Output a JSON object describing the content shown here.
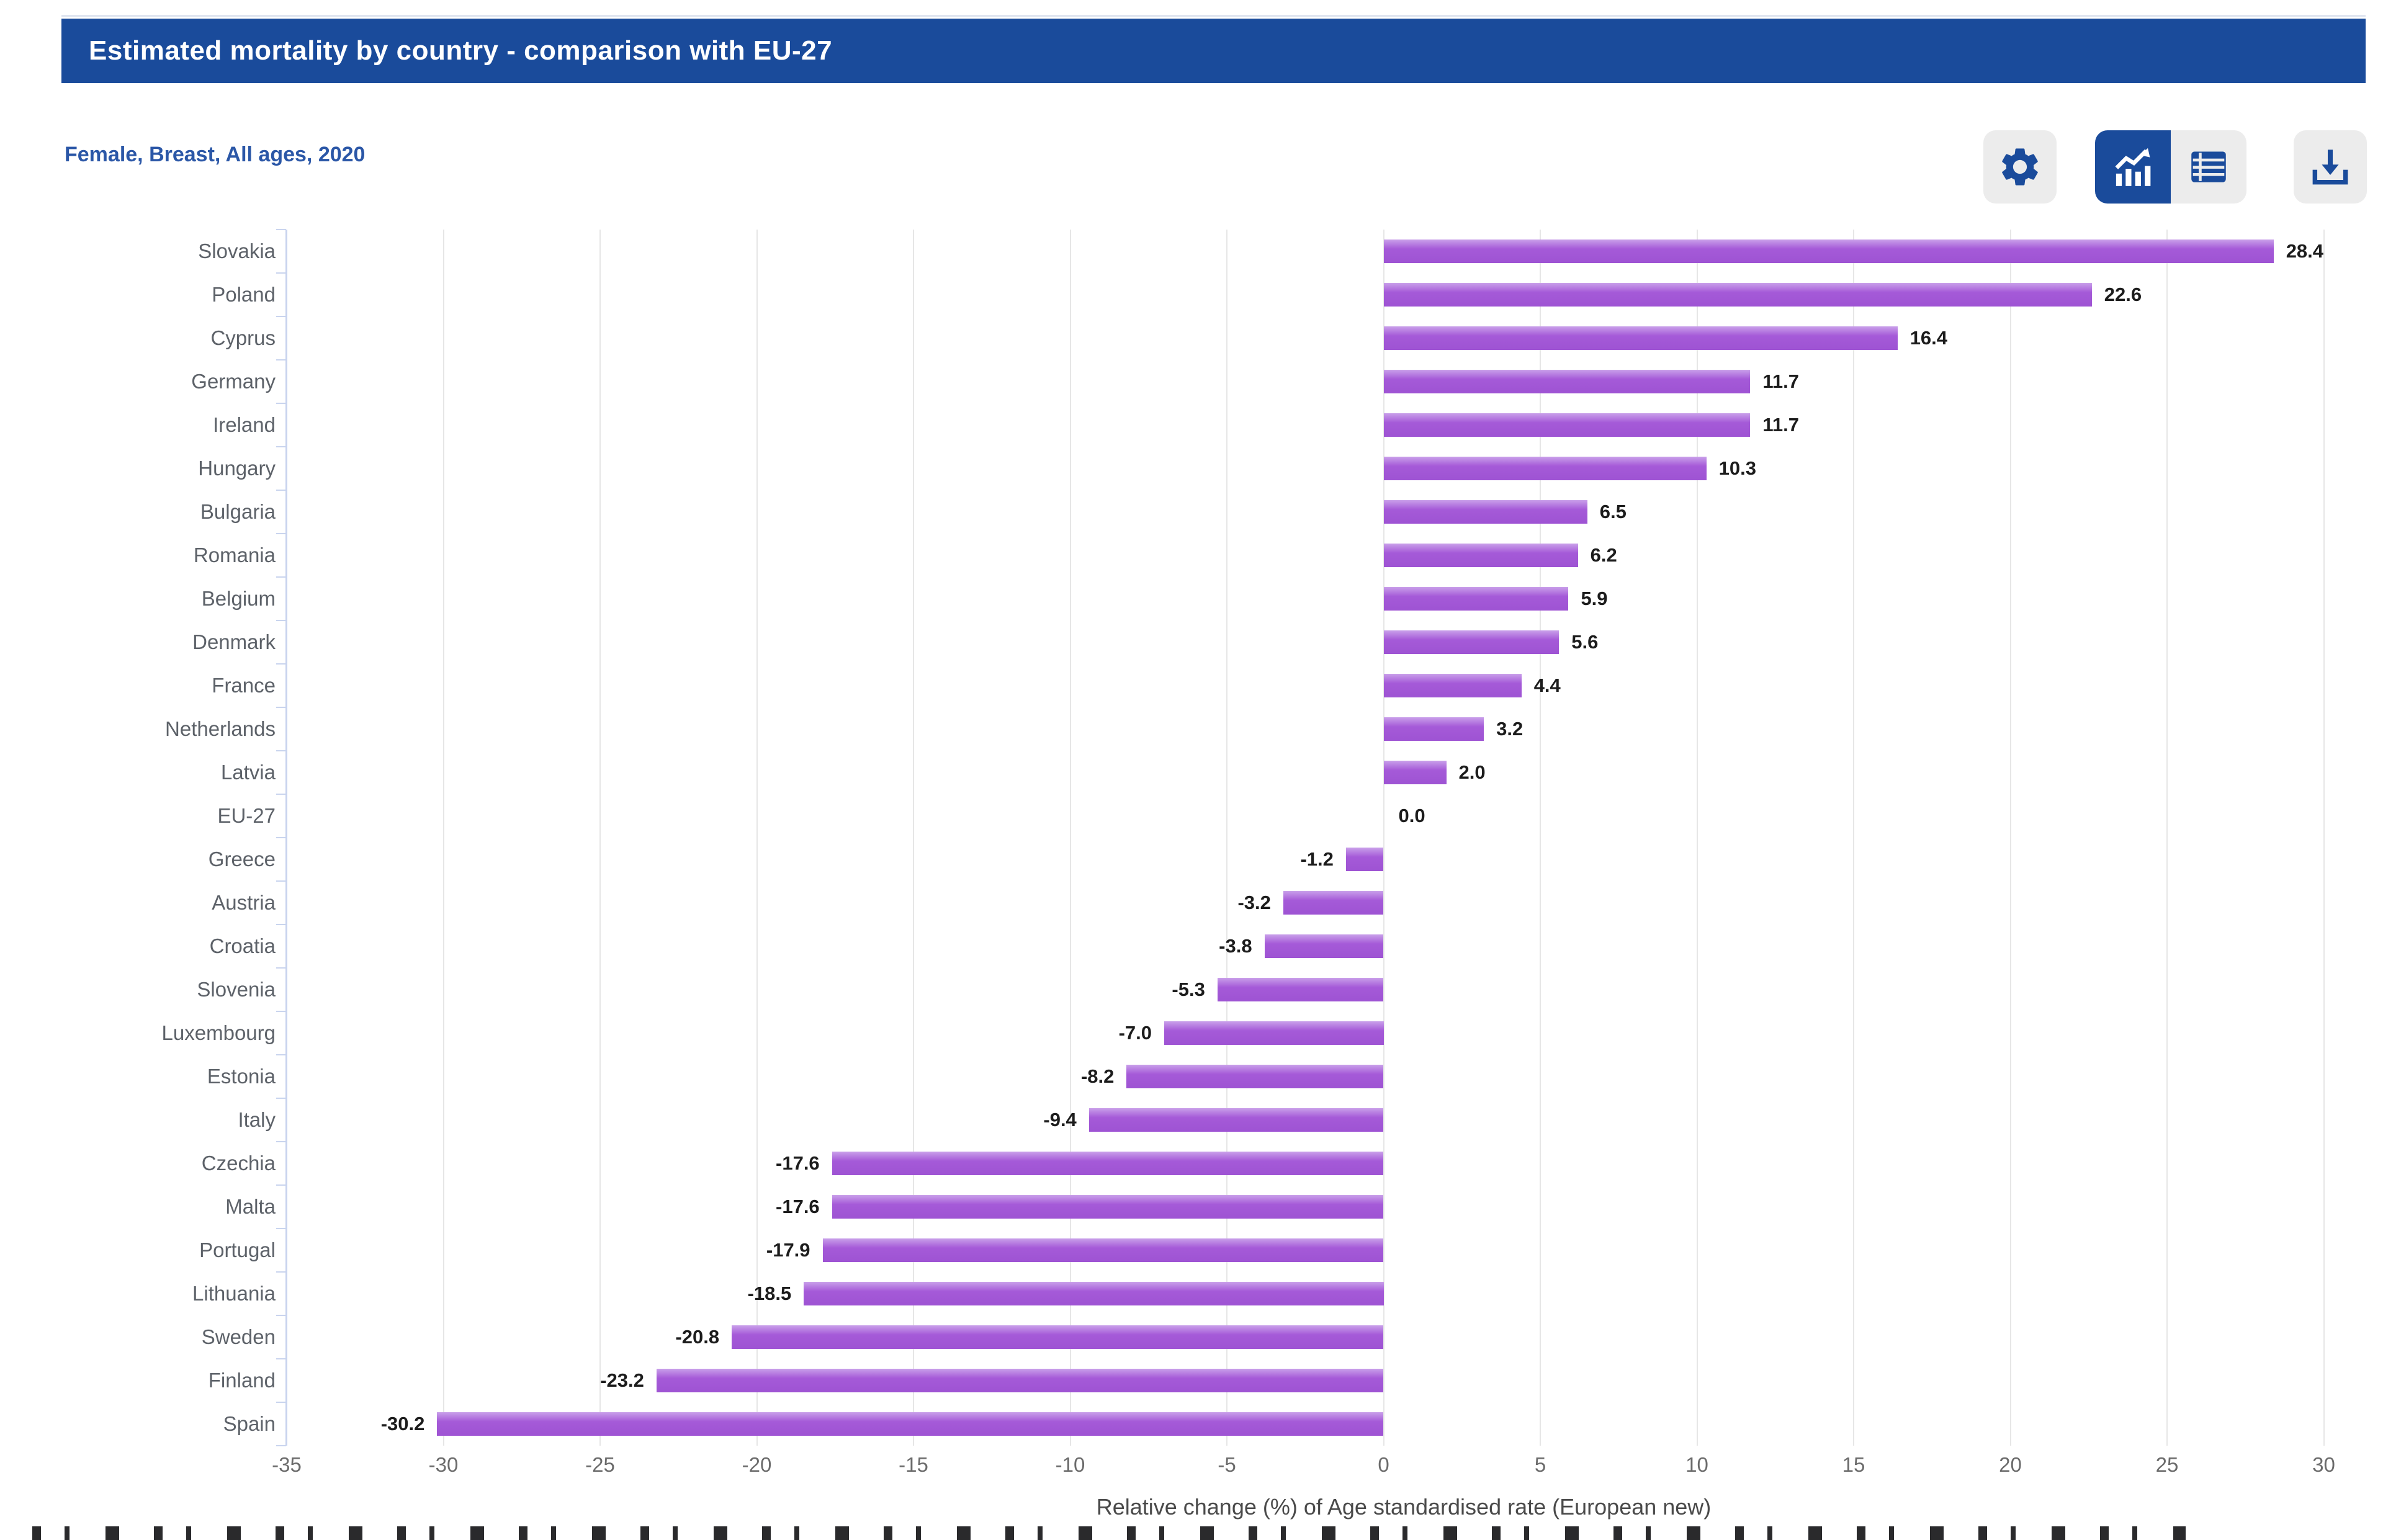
{
  "header": {
    "title": "Estimated mortality by country - comparison with EU-27"
  },
  "subtitle": "Female, Breast, All ages, 2020",
  "toolbar": {
    "buttons": [
      {
        "name": "settings",
        "icon": "gear-icon",
        "active": false
      },
      {
        "name": "chart-view",
        "icon": "chart-icon",
        "active": true
      },
      {
        "name": "table-view",
        "icon": "table-icon",
        "active": false
      },
      {
        "name": "download",
        "icon": "download-icon",
        "active": false
      }
    ]
  },
  "colors": {
    "accent_blue": "#1a4b9b",
    "subtitle_blue": "#2b57a7",
    "bar_purple": "#a55ad8",
    "gridline_gray": "#e6e6e6",
    "category_axis_blue": "#c9d4ee"
  },
  "chart_data": {
    "type": "bar",
    "orientation": "horizontal",
    "title": "Estimated mortality by country - comparison with EU-27",
    "subtitle": "Female, Breast, All ages, 2020",
    "categories": [
      "Slovakia",
      "Poland",
      "Cyprus",
      "Germany",
      "Ireland",
      "Hungary",
      "Bulgaria",
      "Romania",
      "Belgium",
      "Denmark",
      "France",
      "Netherlands",
      "Latvia",
      "EU-27",
      "Greece",
      "Austria",
      "Croatia",
      "Slovenia",
      "Luxembourg",
      "Estonia",
      "Italy",
      "Czechia",
      "Malta",
      "Portugal",
      "Lithuania",
      "Sweden",
      "Finland",
      "Spain"
    ],
    "values": [
      28.4,
      22.6,
      16.4,
      11.7,
      11.7,
      10.3,
      6.5,
      6.2,
      5.9,
      5.6,
      4.4,
      3.2,
      2.0,
      0.0,
      -1.2,
      -3.2,
      -3.8,
      -5.3,
      -7.0,
      -8.2,
      -9.4,
      -17.6,
      -17.6,
      -17.9,
      -18.5,
      -20.8,
      -23.2,
      -30.2
    ],
    "xlabel": "Relative change (%) of Age standardised rate (European new)",
    "ylabel": "",
    "xlim": [
      -35,
      30
    ],
    "xticks": [
      -35,
      -30,
      -25,
      -20,
      -15,
      -10,
      -5,
      0,
      5,
      10,
      15,
      20,
      25,
      30
    ],
    "grid": true,
    "legend": "none",
    "data_labels": true
  }
}
